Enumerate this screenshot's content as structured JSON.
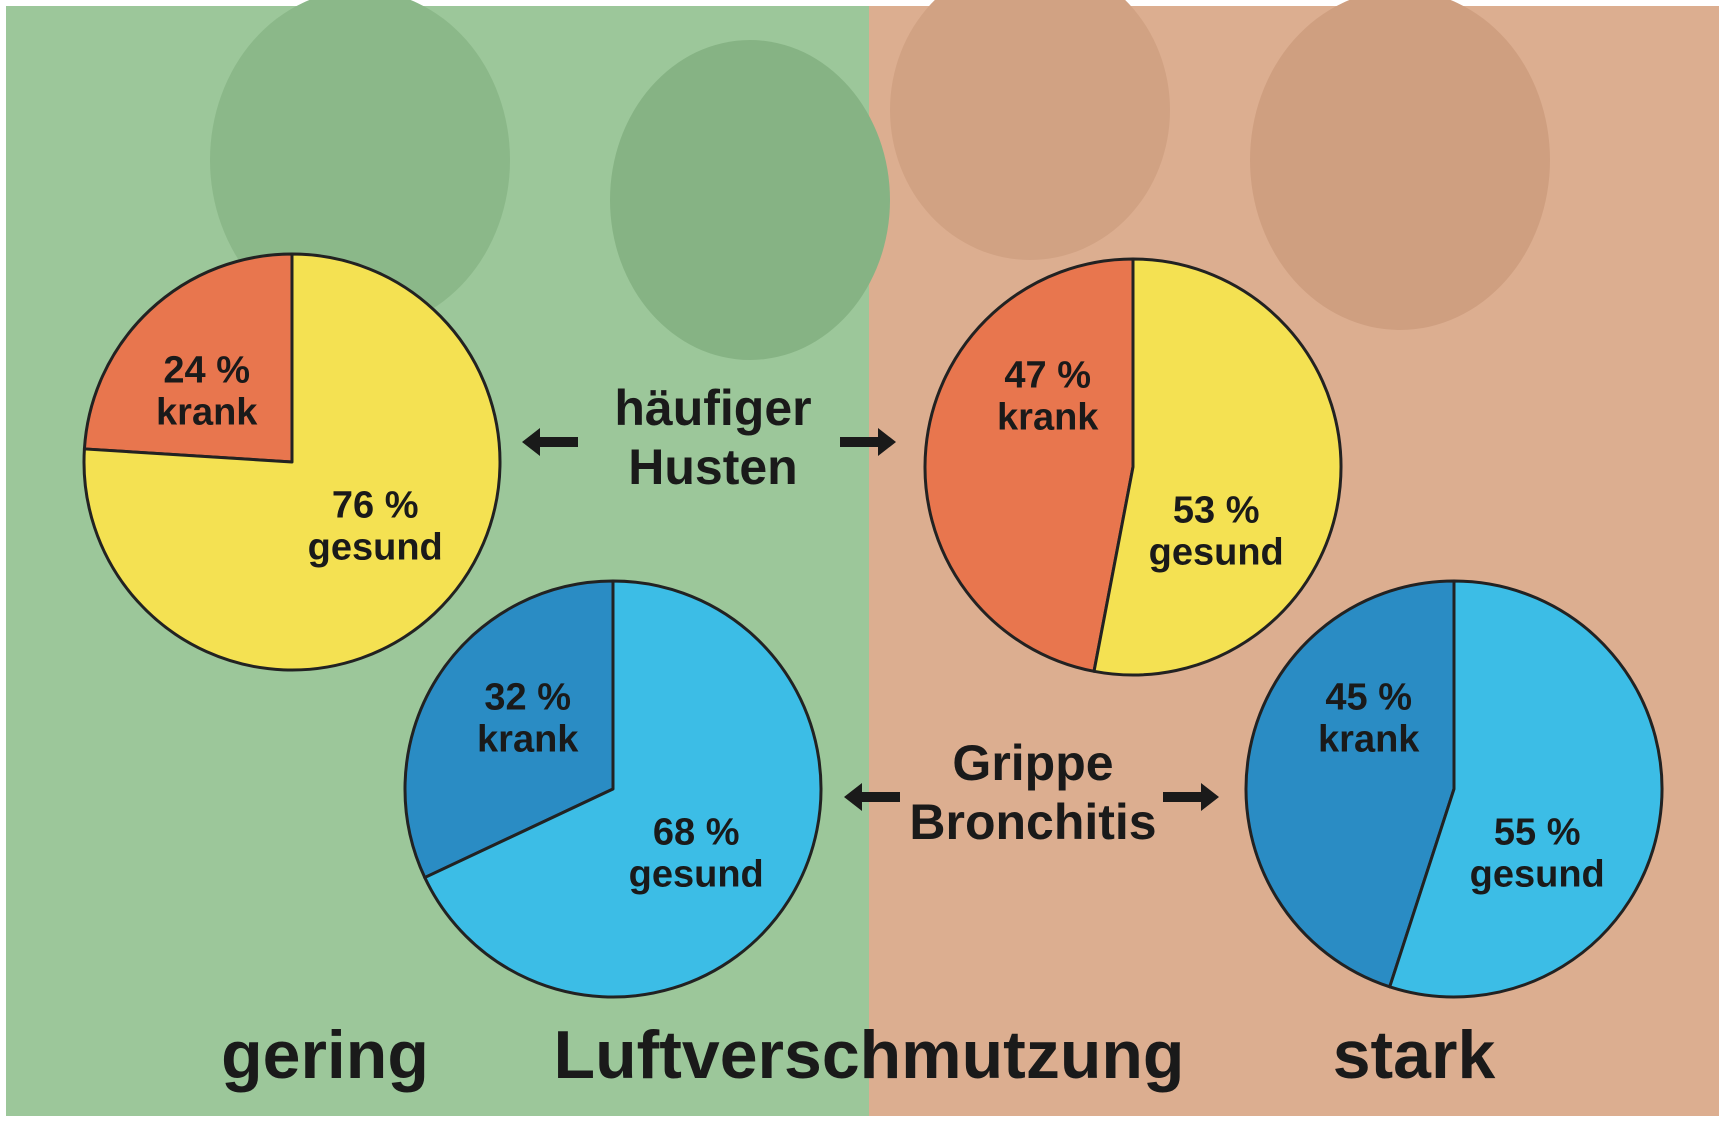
{
  "chart_data": [
    {
      "type": "pie",
      "categories": [
        "krank",
        "gesund"
      ],
      "values": [
        24,
        76
      ],
      "value_labels": [
        "24 %",
        "76 %"
      ],
      "colors": [
        "#e8764e",
        "#f4e152"
      ]
    },
    {
      "type": "pie",
      "categories": [
        "krank",
        "gesund"
      ],
      "values": [
        47,
        53
      ],
      "value_labels": [
        "47 %",
        "53 %"
      ],
      "colors": [
        "#e8764e",
        "#f4e152"
      ]
    },
    {
      "type": "pie",
      "categories": [
        "krank",
        "gesund"
      ],
      "values": [
        32,
        68
      ],
      "value_labels": [
        "32 %",
        "68 %"
      ],
      "colors": [
        "#2a8cc4",
        "#3cbde6"
      ]
    },
    {
      "type": "pie",
      "categories": [
        "krank",
        "gesund"
      ],
      "values": [
        45,
        55
      ],
      "value_labels": [
        "45 %",
        "55 %"
      ],
      "colors": [
        "#2a8cc4",
        "#3cbde6"
      ]
    }
  ],
  "row_labels": [
    [
      "häufiger",
      "Husten"
    ],
    [
      "Grippe",
      "Bronchitis"
    ]
  ],
  "axis": {
    "low": "gering",
    "title": "Luftverschmutzung",
    "high": "stark"
  }
}
